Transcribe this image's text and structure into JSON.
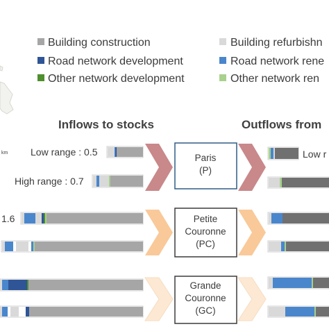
{
  "legend": [
    {
      "label": "Building construction",
      "color": "#a6a6a6"
    },
    {
      "label": "Building refurbishn",
      "color": "#d9d9d9"
    },
    {
      "label": "Road network development",
      "color": "#2f5597"
    },
    {
      "label": "Road network rene",
      "color": "#4a86cc"
    },
    {
      "label": "Other network development",
      "color": "#4e8f2e"
    },
    {
      "label": "Other network ren",
      "color": "#a9d18e"
    }
  ],
  "map": {
    "scale_unit": "km"
  },
  "headers": {
    "inflows": "Inflows to stocks",
    "outflows": "Outflows from"
  },
  "ranges": {
    "p_low": "Low range : 0.5",
    "p_high": "High range : 0.7",
    "p_low_out": "Low r",
    "pc_low": "1.6"
  },
  "regions": [
    {
      "line1": "Paris",
      "line2": "(P)",
      "line3": "",
      "arrow_color": "#c9888a"
    },
    {
      "line1": "Petite",
      "line2": "Couronne",
      "line3": "(PC)",
      "arrow_color": "#f9c999"
    },
    {
      "line1": "Grande",
      "line2": "Couronne",
      "line3": "(GC)",
      "arrow_color": "#fde9d3"
    }
  ]
}
